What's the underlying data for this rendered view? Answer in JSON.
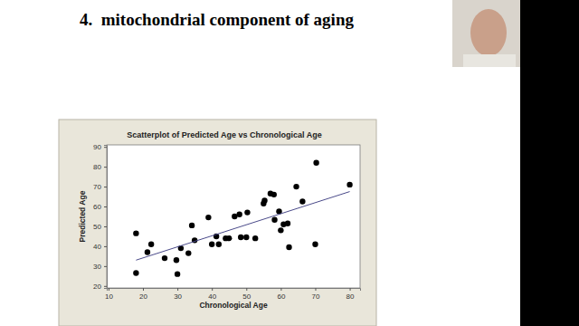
{
  "slide": {
    "heading": "4.  mitochondrial component of aging"
  },
  "chart_data": {
    "type": "scatter",
    "title": "Scatterplot of Predicted Age vs Chronological Age",
    "x_label": "Chronological Age",
    "y_label": "Predicted Age",
    "xlim": [
      9.5,
      83
    ],
    "ylim": [
      19,
      91
    ],
    "xticks": [
      10,
      20,
      30,
      40,
      50,
      60,
      70,
      80
    ],
    "yticks": [
      20,
      30,
      40,
      50,
      60,
      70,
      80,
      90
    ],
    "grid": false,
    "series": [
      {
        "type": "scatter",
        "color": "#000000",
        "marker": "circle",
        "x": [
          18,
          18,
          21.3,
          22.4,
          26.3,
          29.7,
          30,
          31,
          33.2,
          34.2,
          35,
          39,
          40,
          41.3,
          42,
          44,
          45,
          46.6,
          48,
          48.4,
          50.3,
          50,
          52.6,
          55,
          55.3,
          57,
          58,
          58.2,
          59.5,
          60,
          60.8,
          62,
          62.4,
          64.5,
          66.3,
          70.3,
          70,
          80
        ],
        "values": [
          46.5,
          26.5,
          37,
          41,
          34,
          33,
          26,
          39,
          36.5,
          50.5,
          43,
          54.5,
          41,
          45,
          41,
          44,
          44,
          55,
          56,
          44.5,
          57,
          44.5,
          44,
          61.5,
          63,
          66.5,
          66,
          53.3,
          57.5,
          48,
          51,
          51.5,
          39.5,
          70,
          62.5,
          82,
          41,
          71
        ]
      },
      {
        "type": "line",
        "color": "#4b4b8a",
        "line_style": "solid",
        "x": [
          18,
          80
        ],
        "values": [
          33,
          67.5
        ]
      }
    ]
  }
}
